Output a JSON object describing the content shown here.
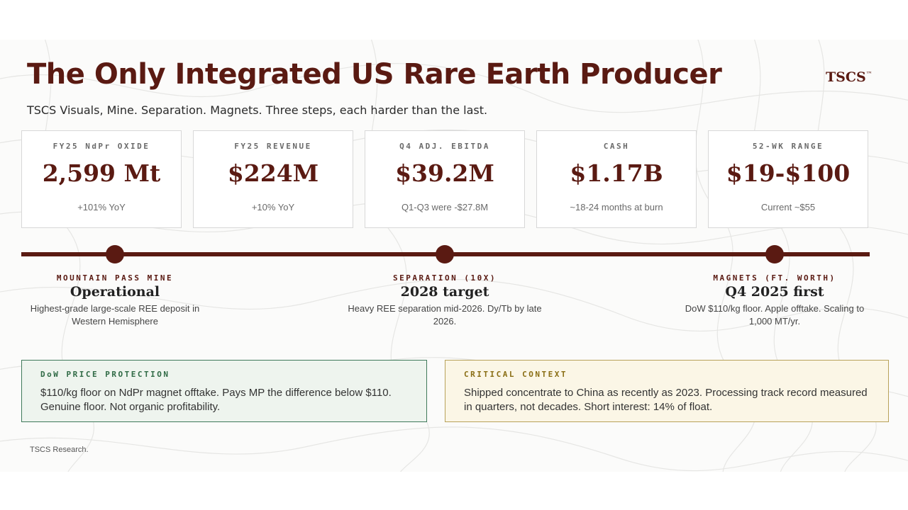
{
  "header": {
    "title": "The Only Integrated US Rare Earth Producer",
    "logo": "TSCS",
    "logo_mark": "™",
    "subtitle": "TSCS Visuals, Mine. Separation. Magnets. Three steps, each harder than the last."
  },
  "kpis": [
    {
      "label": "FY25 NdPr OXIDE",
      "value": "2,599 Mt",
      "note": "+101% YoY"
    },
    {
      "label": "FY25 REVENUE",
      "value": "$224M",
      "note": "+10% YoY"
    },
    {
      "label": "Q4 ADJ. EBITDA",
      "value": "$39.2M",
      "note": "Q1-Q3 were -$27.8M"
    },
    {
      "label": "CASH",
      "value": "$1.17B",
      "note": "~18-24 months at burn"
    },
    {
      "label": "52-WK RANGE",
      "value": "$19-$100",
      "note": "Current ~$55"
    }
  ],
  "milestones": [
    {
      "label": "MOUNTAIN PASS MINE",
      "title": "Operational",
      "desc": "Highest-grade large-scale REE deposit in Western Hemisphere"
    },
    {
      "label": "SEPARATION (10X)",
      "title": "2028 target",
      "desc": "Heavy REE separation mid-2026. Dy/Tb by late 2026."
    },
    {
      "label": "MAGNETS (FT. WORTH)",
      "title": "Q4 2025 first",
      "desc": "DoW $110/kg floor. Apple offtake. Scaling to 1,000 MT/yr."
    }
  ],
  "callouts": {
    "protection": {
      "label": "DoW PRICE PROTECTION",
      "text": "$110/kg floor on NdPr magnet offtake. Pays MP the difference below $110. Genuine floor. Not organic profitability."
    },
    "context": {
      "label": "CRITICAL CONTEXT",
      "text": "Shipped concentrate to China as recently as 2023. Processing track record measured in quarters, not decades. Short interest: 14% of float."
    }
  },
  "footer": "TSCS Research.",
  "colors": {
    "accent": "#5a1a12",
    "protection_border": "#3f7a5a",
    "context_border": "#b8a25a"
  }
}
